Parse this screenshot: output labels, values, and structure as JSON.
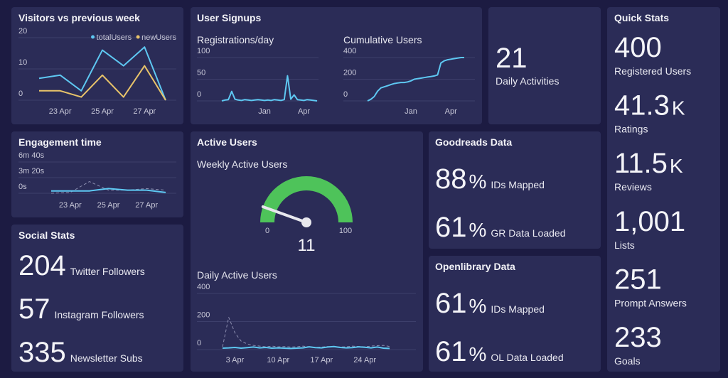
{
  "chart_data": [
    {
      "type": "line",
      "title": "Visitors vs previous week",
      "categories": [
        null,
        "23 Apr",
        null,
        "25 Apr",
        null,
        "27 Apr",
        null
      ],
      "series": [
        {
          "name": "totalUsers",
          "color": "#5ec8f2",
          "values": [
            7,
            8,
            3,
            16,
            11,
            17,
            0
          ]
        },
        {
          "name": "newUsers",
          "color": "#e9c46a",
          "values": [
            3,
            3,
            1,
            8,
            1,
            11,
            0
          ]
        }
      ],
      "ylim": [
        0,
        20
      ],
      "yticks": [
        0,
        10,
        20
      ],
      "grid": true,
      "legend": "top-right"
    },
    {
      "type": "line",
      "title": "Registrations/day",
      "categories": [
        null,
        null,
        null,
        null,
        null,
        null,
        null,
        null,
        null,
        null,
        null,
        null,
        null,
        "Jan",
        null,
        null,
        null,
        null,
        null,
        null,
        null,
        null,
        null,
        null,
        null,
        "Apr",
        null,
        null,
        null,
        null
      ],
      "series": [
        {
          "color": "#5ec8f2",
          "values": [
            0,
            2,
            3,
            22,
            4,
            2,
            1,
            3,
            2,
            1,
            2,
            3,
            2,
            1,
            2,
            1,
            3,
            2,
            1,
            3,
            58,
            4,
            14,
            3,
            2,
            1,
            3,
            2,
            1,
            0
          ]
        }
      ],
      "ylim": [
        0,
        100
      ],
      "yticks": [
        0,
        50,
        100
      ],
      "grid": true
    },
    {
      "type": "line",
      "title": "Cumulative Users",
      "categories": [
        null,
        null,
        null,
        null,
        null,
        null,
        null,
        null,
        null,
        null,
        null,
        null,
        null,
        "Jan",
        null,
        null,
        null,
        null,
        null,
        null,
        null,
        null,
        null,
        null,
        null,
        "Apr",
        null,
        null,
        null,
        null
      ],
      "series": [
        {
          "color": "#5ec8f2",
          "values": [
            0,
            15,
            40,
            90,
            120,
            130,
            140,
            150,
            160,
            165,
            170,
            170,
            175,
            185,
            200,
            205,
            210,
            215,
            220,
            225,
            230,
            240,
            350,
            370,
            380,
            385,
            390,
            395,
            400,
            400
          ]
        }
      ],
      "ylim": [
        0,
        400
      ],
      "yticks": [
        0,
        200,
        400
      ],
      "grid": true
    },
    {
      "type": "line",
      "title": "Engagement time",
      "categories": [
        null,
        "23 Apr",
        null,
        "25 Apr",
        null,
        "27 Apr",
        null
      ],
      "series": [
        {
          "color": "#8a8cae",
          "dashed": true,
          "values": [
            0,
            10,
            150,
            40,
            40,
            60,
            40
          ]
        },
        {
          "color": "#5ec8f2",
          "values": [
            30,
            30,
            30,
            60,
            40,
            40,
            10
          ]
        }
      ],
      "ylim": [
        0,
        400
      ],
      "yticks": [
        {
          "value": 0,
          "label": "0s"
        },
        {
          "value": 200,
          "label": "3m 20s"
        },
        {
          "value": 400,
          "label": "6m 40s"
        }
      ],
      "grid": true
    },
    {
      "type": "gauge",
      "title": "Weekly Active Users",
      "value": 11,
      "min": 0,
      "max": 100,
      "color": "#4ec35a"
    },
    {
      "type": "line",
      "title": "Daily Active Users",
      "categories": [
        null,
        null,
        "3 Apr",
        null,
        null,
        null,
        null,
        null,
        null,
        "10 Apr",
        null,
        null,
        null,
        null,
        null,
        null,
        "17 Apr",
        null,
        null,
        null,
        null,
        null,
        null,
        "24 Apr",
        null,
        null,
        null,
        null
      ],
      "series": [
        {
          "color": "#8a8cae",
          "dashed": true,
          "values": [
            20,
            230,
            120,
            60,
            40,
            30,
            25,
            20,
            25,
            20,
            22,
            18,
            20,
            25,
            20,
            15,
            18,
            22,
            20,
            18,
            20,
            25,
            22,
            20,
            25,
            28,
            30,
            22
          ]
        },
        {
          "color": "#5ec8f2",
          "values": [
            10,
            12,
            15,
            10,
            14,
            18,
            12,
            15,
            10,
            12,
            10,
            8,
            10,
            12,
            20,
            14,
            12,
            18,
            22,
            15,
            12,
            14,
            20,
            16,
            12,
            18,
            10,
            8
          ]
        }
      ],
      "ylim": [
        0,
        400
      ],
      "yticks": [
        0,
        200,
        400
      ],
      "grid": true
    }
  ],
  "panels": {
    "signups": "User Signups",
    "active": "Active Users"
  },
  "daily_activities": {
    "value": 21,
    "label": "Daily Activities"
  },
  "social": {
    "title": "Social Stats",
    "items": [
      {
        "value": 204,
        "label": "Twitter Followers"
      },
      {
        "value": 57,
        "label": "Instagram Followers"
      },
      {
        "value": 335,
        "label": "Newsletter Subs"
      }
    ]
  },
  "goodreads": {
    "title": "Goodreads Data",
    "items": [
      {
        "value": 88,
        "unit": "%",
        "label": "IDs Mapped"
      },
      {
        "value": 61,
        "unit": "%",
        "label": "GR Data Loaded"
      }
    ]
  },
  "openlibrary": {
    "title": "Openlibrary Data",
    "items": [
      {
        "value": 61,
        "unit": "%",
        "label": "IDs Mapped"
      },
      {
        "value": 61,
        "unit": "%",
        "label": "OL Data Loaded"
      }
    ]
  },
  "quick_stats": {
    "title": "Quick Stats",
    "items": [
      {
        "value": 400,
        "label": "Registered Users"
      },
      {
        "value": 41.3,
        "unit": "K",
        "label": "Ratings"
      },
      {
        "value": 11.5,
        "unit": "K",
        "label": "Reviews"
      },
      {
        "value": "1,001",
        "label": "Lists"
      },
      {
        "value": 251,
        "label": "Prompt Answers"
      },
      {
        "value": 233,
        "label": "Goals"
      }
    ]
  }
}
